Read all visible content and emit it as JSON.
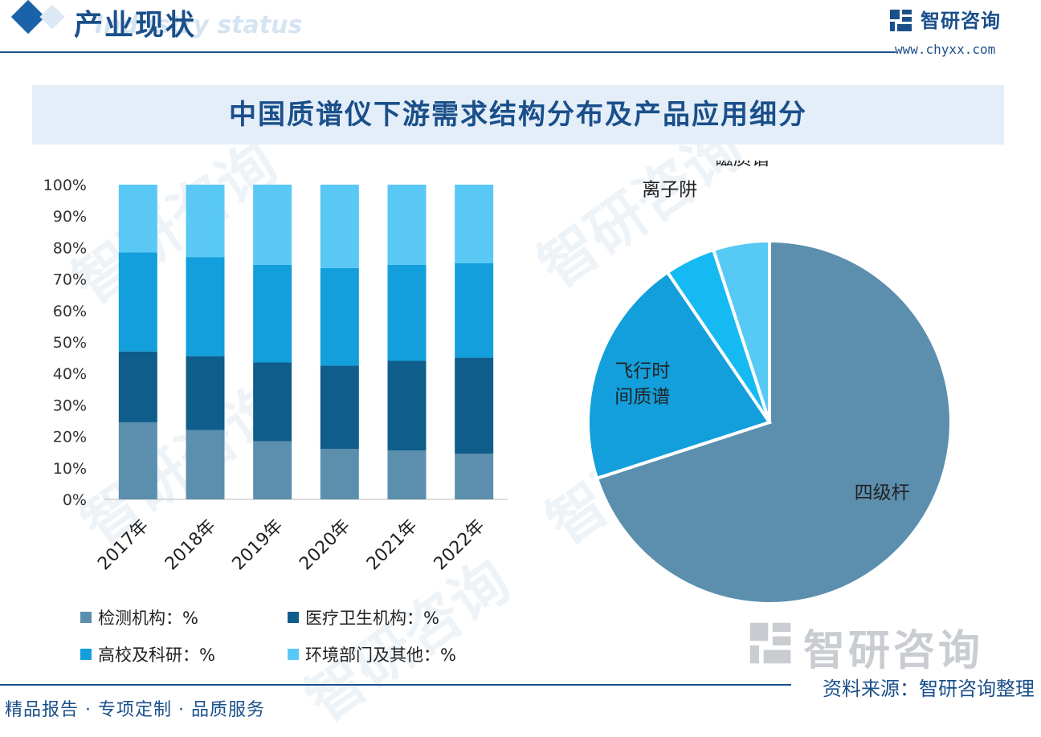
{
  "header": {
    "title": "产业现状",
    "subtitle": "Industry status",
    "brand_name": "智研咨询",
    "brand_url": "www.chyxx.com"
  },
  "watermark_text": "智研咨询",
  "chart_title": "中国质谱仪下游需求结构分布及产品应用细分",
  "colors": {
    "seg1": "#5b8fad",
    "seg2": "#0f5d8a",
    "seg3": "#129fdc",
    "seg4": "#5ac8f5",
    "pie_quad": "#5b8fad",
    "pie_tof": "#129fdc",
    "pie_ion": "#16baf2",
    "pie_mag": "#56c9f4",
    "accent": "#1a4f8a"
  },
  "chart_data": [
    {
      "type": "bar",
      "stacked": true,
      "categories": [
        "2017年",
        "2018年",
        "2019年",
        "2020年",
        "2021年",
        "2022年"
      ],
      "series": [
        {
          "name": "检测机构：%",
          "values": [
            24.5,
            22,
            18.5,
            16,
            15.5,
            14.5
          ]
        },
        {
          "name": "医疗卫生机构：%",
          "values": [
            22.5,
            23.5,
            25,
            26.5,
            28.5,
            30.5
          ]
        },
        {
          "name": "高校及科研：%",
          "values": [
            31.5,
            31.5,
            31,
            31,
            30.5,
            30
          ]
        },
        {
          "name": "环境部门及其他：%",
          "values": [
            21.5,
            23,
            25.5,
            26.5,
            25.5,
            25
          ]
        }
      ],
      "yticks": [
        "0%",
        "10%",
        "20%",
        "30%",
        "40%",
        "50%",
        "60%",
        "70%",
        "80%",
        "90%",
        "100%"
      ],
      "ylim": [
        0,
        100
      ],
      "legend_position": "bottom"
    },
    {
      "type": "pie",
      "slices": [
        {
          "label": "四级杆",
          "value": 70
        },
        {
          "label": "飞行时间质谱",
          "label_lines": [
            "飞行时",
            "间质谱"
          ],
          "value": 20.5
        },
        {
          "label": "离子阱",
          "value": 4.5
        },
        {
          "label": "磁质谱",
          "value": 5
        }
      ]
    }
  ],
  "footer": {
    "left": "精品报告 · 专项定制 · 品质服务",
    "right": "资料来源：智研咨询整理"
  }
}
